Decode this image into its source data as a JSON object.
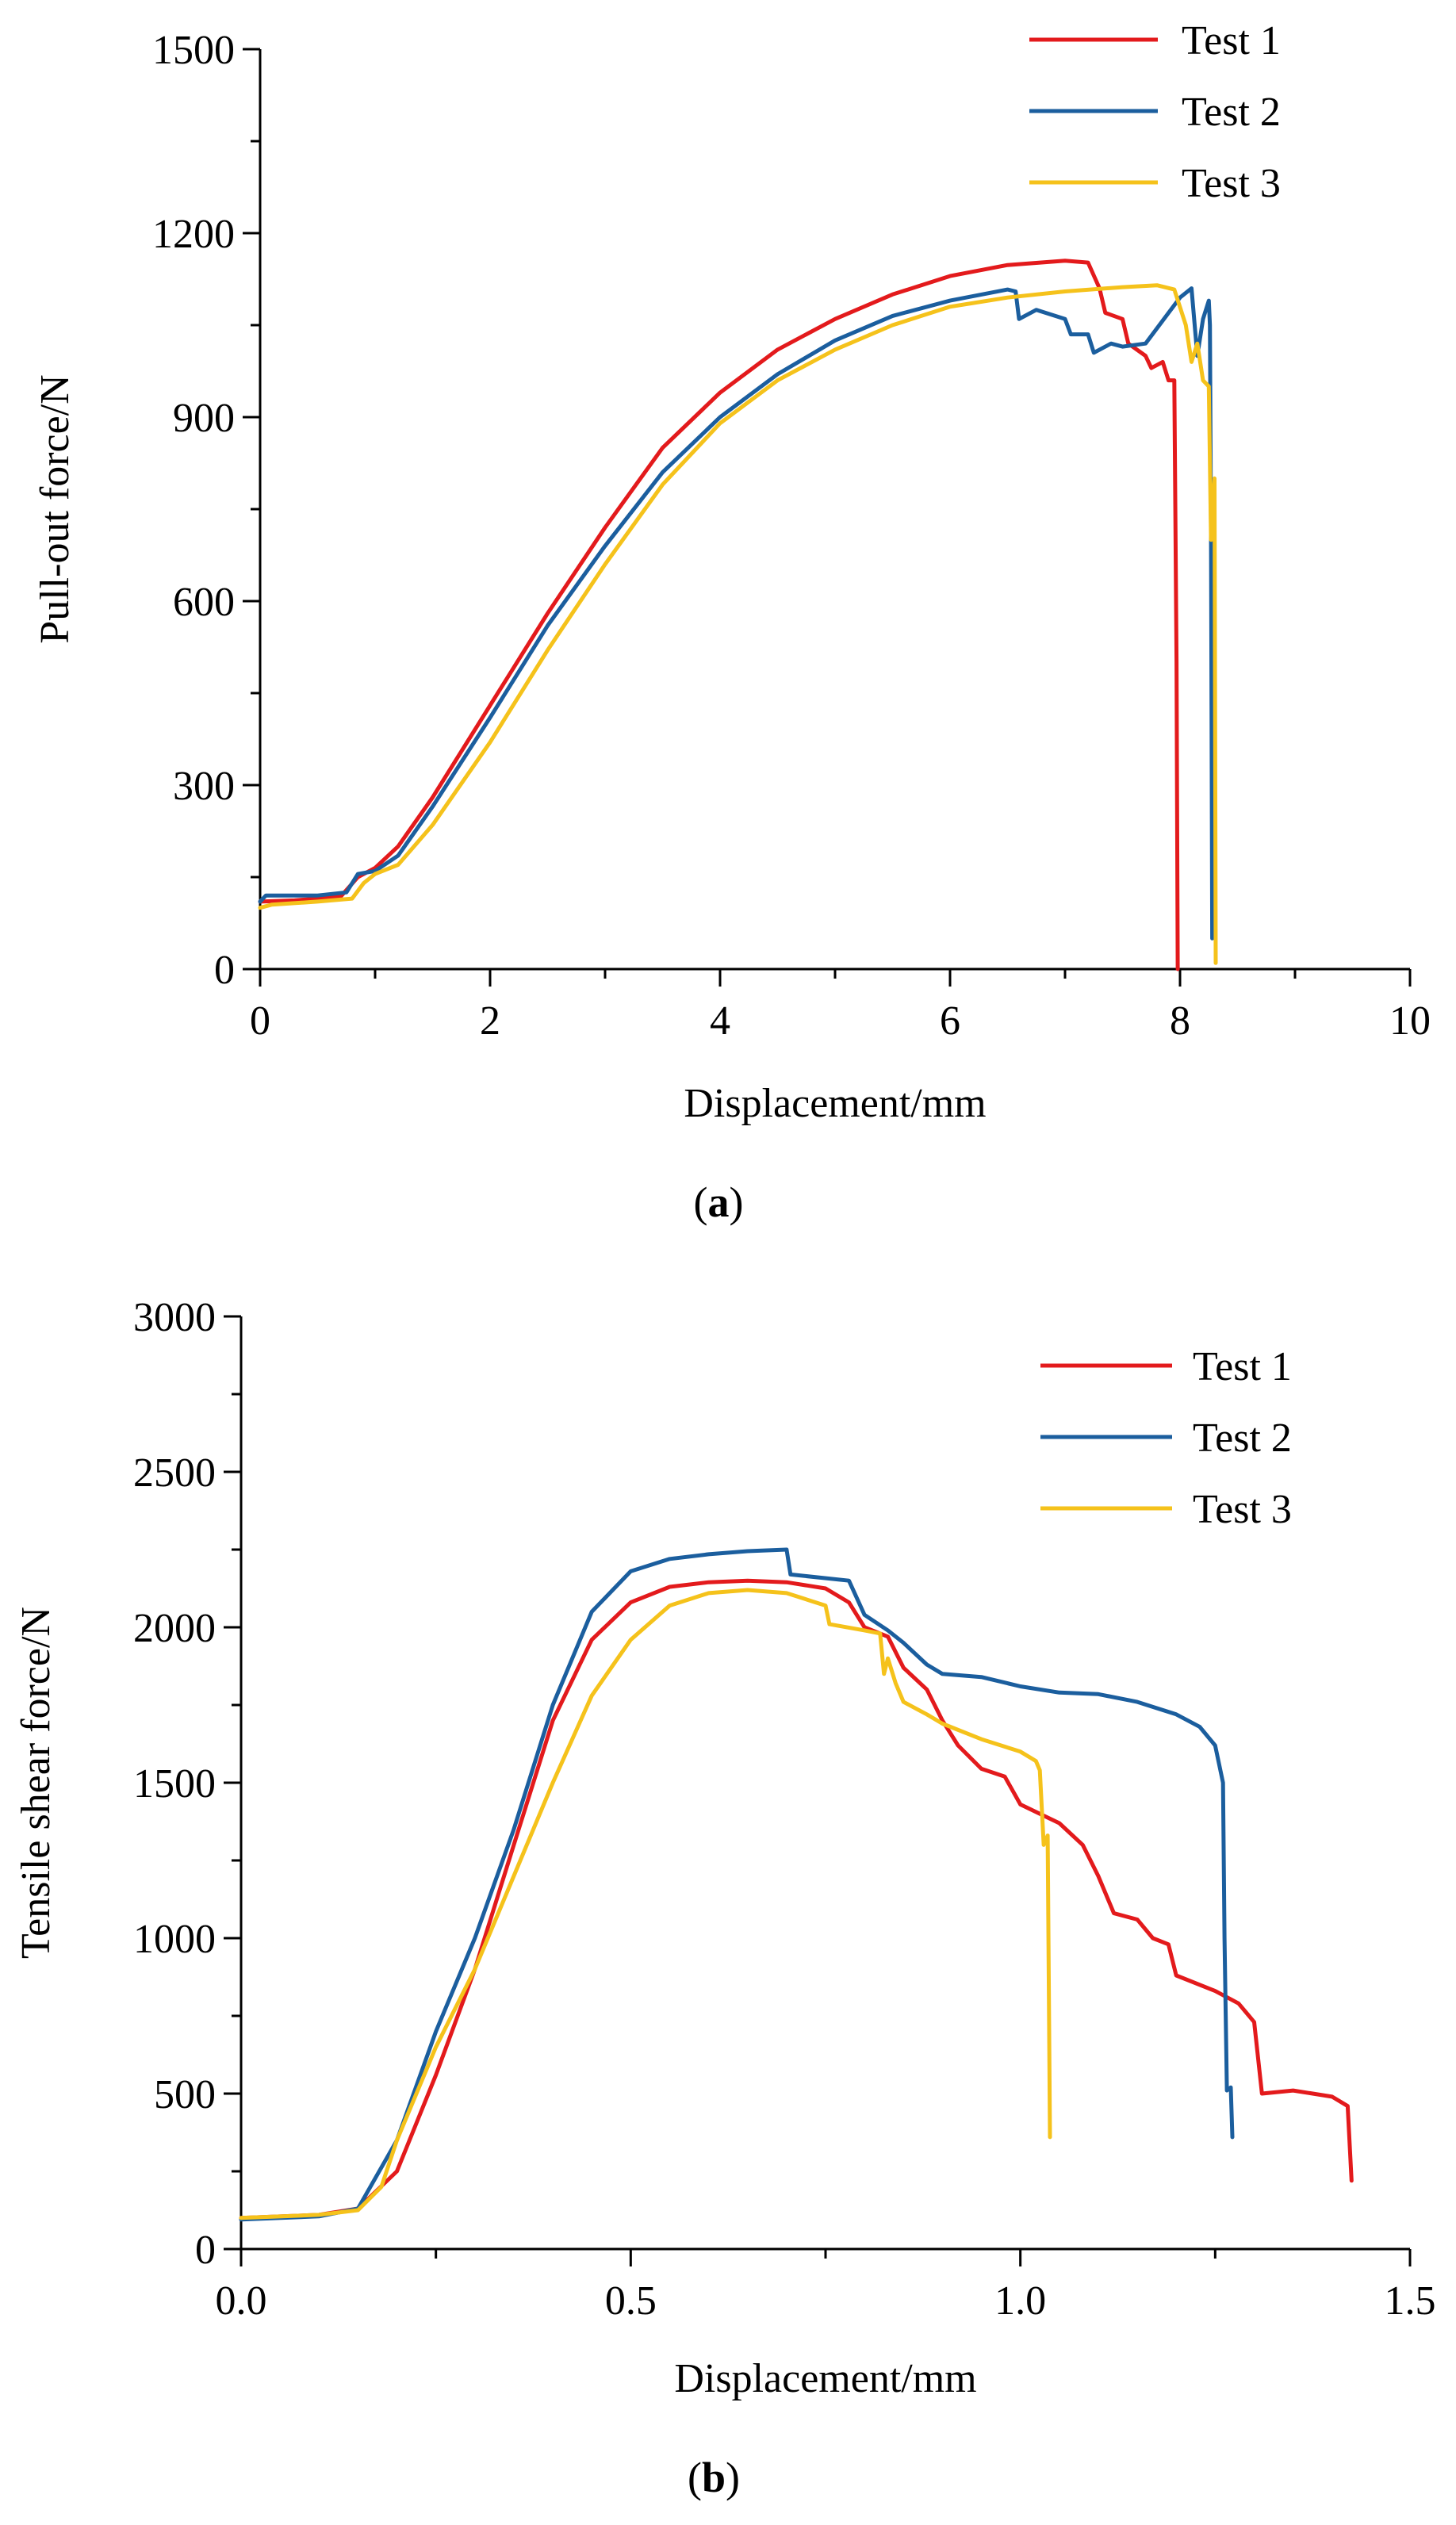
{
  "colors": {
    "test1": "#e31a1c",
    "test2": "#1b5e9e",
    "test3": "#f5c21b",
    "axis": "#000000"
  },
  "chart_data": [
    {
      "type": "line",
      "panel": "a",
      "caption_letter": "a",
      "xlabel": "Displacement/mm",
      "ylabel": "Pull-out force/N",
      "xlim": [
        0,
        10
      ],
      "ylim": [
        0,
        1500
      ],
      "xticks": [
        0,
        2,
        4,
        6,
        8,
        10
      ],
      "xtick_labels": [
        "0",
        "2",
        "4",
        "6",
        "8",
        "10"
      ],
      "yticks": [
        0,
        300,
        600,
        900,
        1200,
        1500
      ],
      "ytick_labels": [
        "0",
        "300",
        "600",
        "900",
        "1200",
        "1500"
      ],
      "legend_position": "top-right",
      "series": [
        {
          "name": "Test 1",
          "color_key": "test1",
          "points": [
            [
              0,
              110
            ],
            [
              0.3,
              112
            ],
            [
              0.7,
              118
            ],
            [
              0.85,
              150
            ],
            [
              1.0,
              165
            ],
            [
              1.2,
              200
            ],
            [
              1.5,
              280
            ],
            [
              2.0,
              430
            ],
            [
              2.5,
              580
            ],
            [
              3.0,
              720
            ],
            [
              3.5,
              850
            ],
            [
              4.0,
              940
            ],
            [
              4.5,
              1010
            ],
            [
              5.0,
              1060
            ],
            [
              5.5,
              1100
            ],
            [
              6.0,
              1130
            ],
            [
              6.5,
              1148
            ],
            [
              7.0,
              1155
            ],
            [
              7.2,
              1152
            ],
            [
              7.3,
              1110
            ],
            [
              7.35,
              1070
            ],
            [
              7.5,
              1060
            ],
            [
              7.55,
              1020
            ],
            [
              7.7,
              1000
            ],
            [
              7.75,
              980
            ],
            [
              7.85,
              990
            ],
            [
              7.9,
              960
            ],
            [
              7.95,
              960
            ],
            [
              7.97,
              500
            ],
            [
              7.98,
              0
            ]
          ]
        },
        {
          "name": "Test 2",
          "color_key": "test2",
          "points": [
            [
              0,
              110
            ],
            [
              0.05,
              120
            ],
            [
              0.5,
              120
            ],
            [
              0.75,
              125
            ],
            [
              0.85,
              155
            ],
            [
              1.0,
              160
            ],
            [
              1.2,
              185
            ],
            [
              1.5,
              265
            ],
            [
              2.0,
              410
            ],
            [
              2.5,
              560
            ],
            [
              3.0,
              690
            ],
            [
              3.5,
              810
            ],
            [
              4.0,
              900
            ],
            [
              4.5,
              970
            ],
            [
              5.0,
              1025
            ],
            [
              5.5,
              1065
            ],
            [
              6.0,
              1090
            ],
            [
              6.5,
              1108
            ],
            [
              6.57,
              1105
            ],
            [
              6.6,
              1060
            ],
            [
              6.75,
              1075
            ],
            [
              7.0,
              1060
            ],
            [
              7.05,
              1035
            ],
            [
              7.2,
              1035
            ],
            [
              7.25,
              1005
            ],
            [
              7.4,
              1020
            ],
            [
              7.5,
              1015
            ],
            [
              7.7,
              1020
            ],
            [
              7.9,
              1070
            ],
            [
              8.0,
              1095
            ],
            [
              8.1,
              1110
            ],
            [
              8.15,
              1000
            ],
            [
              8.2,
              1060
            ],
            [
              8.25,
              1090
            ],
            [
              8.26,
              1050
            ],
            [
              8.27,
              700
            ],
            [
              8.28,
              50
            ]
          ]
        },
        {
          "name": "Test 3",
          "color_key": "test3",
          "points": [
            [
              0,
              100
            ],
            [
              0.1,
              105
            ],
            [
              0.5,
              110
            ],
            [
              0.8,
              115
            ],
            [
              0.9,
              140
            ],
            [
              1.0,
              155
            ],
            [
              1.2,
              170
            ],
            [
              1.5,
              235
            ],
            [
              2.0,
              370
            ],
            [
              2.5,
              520
            ],
            [
              3.0,
              660
            ],
            [
              3.5,
              790
            ],
            [
              4.0,
              890
            ],
            [
              4.5,
              960
            ],
            [
              5.0,
              1010
            ],
            [
              5.5,
              1050
            ],
            [
              6.0,
              1080
            ],
            [
              6.5,
              1095
            ],
            [
              7.0,
              1105
            ],
            [
              7.5,
              1112
            ],
            [
              7.8,
              1115
            ],
            [
              7.95,
              1108
            ],
            [
              8.05,
              1050
            ],
            [
              8.1,
              990
            ],
            [
              8.15,
              1020
            ],
            [
              8.2,
              960
            ],
            [
              8.25,
              950
            ],
            [
              8.27,
              700
            ],
            [
              8.3,
              800
            ],
            [
              8.31,
              10
            ]
          ]
        }
      ]
    },
    {
      "type": "line",
      "panel": "b",
      "caption_letter": "b",
      "xlabel": "Displacement/mm",
      "ylabel": "Tensile shear force/N",
      "xlim": [
        0,
        1.5
      ],
      "ylim": [
        0,
        3000
      ],
      "xticks": [
        0,
        0.5,
        1.0,
        1.5
      ],
      "xtick_labels": [
        "0.0",
        "0.5",
        "1.0",
        "1.5"
      ],
      "yticks": [
        0,
        500,
        1000,
        1500,
        2000,
        2500,
        3000
      ],
      "ytick_labels": [
        "0",
        "500",
        "1000",
        "1500",
        "2000",
        "2500",
        "3000"
      ],
      "legend_position": "top-right",
      "series": [
        {
          "name": "Test 1",
          "color_key": "test1",
          "points": [
            [
              0,
              100
            ],
            [
              0.1,
              110
            ],
            [
              0.15,
              130
            ],
            [
              0.2,
              250
            ],
            [
              0.25,
              560
            ],
            [
              0.3,
              900
            ],
            [
              0.35,
              1300
            ],
            [
              0.4,
              1700
            ],
            [
              0.45,
              1960
            ],
            [
              0.5,
              2080
            ],
            [
              0.55,
              2130
            ],
            [
              0.6,
              2145
            ],
            [
              0.65,
              2150
            ],
            [
              0.7,
              2145
            ],
            [
              0.75,
              2125
            ],
            [
              0.78,
              2080
            ],
            [
              0.8,
              2000
            ],
            [
              0.83,
              1970
            ],
            [
              0.85,
              1870
            ],
            [
              0.88,
              1800
            ],
            [
              0.9,
              1700
            ],
            [
              0.92,
              1620
            ],
            [
              0.95,
              1545
            ],
            [
              0.98,
              1520
            ],
            [
              1.0,
              1430
            ],
            [
              1.05,
              1370
            ],
            [
              1.08,
              1300
            ],
            [
              1.1,
              1200
            ],
            [
              1.12,
              1080
            ],
            [
              1.15,
              1060
            ],
            [
              1.17,
              1000
            ],
            [
              1.19,
              980
            ],
            [
              1.2,
              880
            ],
            [
              1.25,
              830
            ],
            [
              1.28,
              790
            ],
            [
              1.3,
              730
            ],
            [
              1.31,
              500
            ],
            [
              1.35,
              510
            ],
            [
              1.4,
              490
            ],
            [
              1.42,
              460
            ],
            [
              1.425,
              220
            ]
          ]
        },
        {
          "name": "Test 2",
          "color_key": "test2",
          "points": [
            [
              0,
              95
            ],
            [
              0.1,
              105
            ],
            [
              0.15,
              130
            ],
            [
              0.2,
              350
            ],
            [
              0.25,
              700
            ],
            [
              0.3,
              1000
            ],
            [
              0.35,
              1350
            ],
            [
              0.4,
              1750
            ],
            [
              0.45,
              2050
            ],
            [
              0.5,
              2180
            ],
            [
              0.55,
              2220
            ],
            [
              0.6,
              2235
            ],
            [
              0.65,
              2245
            ],
            [
              0.7,
              2250
            ],
            [
              0.705,
              2170
            ],
            [
              0.78,
              2150
            ],
            [
              0.8,
              2040
            ],
            [
              0.83,
              1990
            ],
            [
              0.85,
              1950
            ],
            [
              0.88,
              1880
            ],
            [
              0.9,
              1850
            ],
            [
              0.95,
              1840
            ],
            [
              1.0,
              1810
            ],
            [
              1.05,
              1790
            ],
            [
              1.1,
              1785
            ],
            [
              1.15,
              1760
            ],
            [
              1.2,
              1720
            ],
            [
              1.23,
              1680
            ],
            [
              1.25,
              1620
            ],
            [
              1.26,
              1500
            ],
            [
              1.262,
              1000
            ],
            [
              1.265,
              510
            ],
            [
              1.27,
              520
            ],
            [
              1.272,
              360
            ]
          ]
        },
        {
          "name": "Test 3",
          "color_key": "test3",
          "points": [
            [
              0,
              100
            ],
            [
              0.1,
              110
            ],
            [
              0.15,
              125
            ],
            [
              0.18,
              200
            ],
            [
              0.2,
              350
            ],
            [
              0.25,
              650
            ],
            [
              0.3,
              900
            ],
            [
              0.35,
              1200
            ],
            [
              0.4,
              1500
            ],
            [
              0.45,
              1780
            ],
            [
              0.5,
              1960
            ],
            [
              0.55,
              2070
            ],
            [
              0.6,
              2110
            ],
            [
              0.65,
              2120
            ],
            [
              0.7,
              2110
            ],
            [
              0.75,
              2070
            ],
            [
              0.755,
              2010
            ],
            [
              0.8,
              1990
            ],
            [
              0.82,
              1980
            ],
            [
              0.825,
              1850
            ],
            [
              0.83,
              1900
            ],
            [
              0.84,
              1820
            ],
            [
              0.85,
              1760
            ],
            [
              0.88,
              1720
            ],
            [
              0.9,
              1690
            ],
            [
              0.95,
              1640
            ],
            [
              1.0,
              1600
            ],
            [
              1.02,
              1570
            ],
            [
              1.025,
              1540
            ],
            [
              1.03,
              1300
            ],
            [
              1.035,
              1330
            ],
            [
              1.038,
              360
            ]
          ]
        }
      ]
    }
  ]
}
